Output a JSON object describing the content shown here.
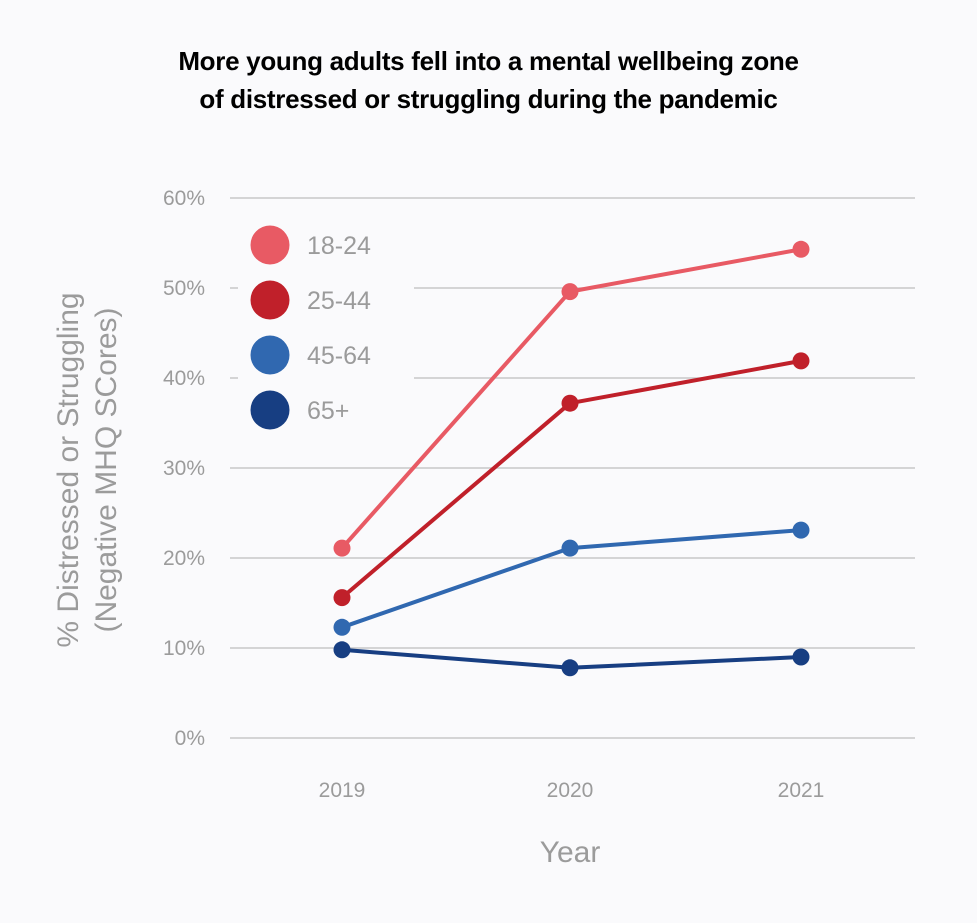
{
  "chart_data": {
    "type": "line",
    "title_lines": [
      "More young adults fell into a mental wellbeing zone",
      "of distressed or struggling during the pandemic"
    ],
    "xlabel": "Year",
    "ylabel_lines": [
      "% Distressed or Struggling",
      "(Negative MHQ SCores)"
    ],
    "x": [
      "2019",
      "2020",
      "2021"
    ],
    "ylim": [
      0,
      60
    ],
    "yticks": [
      0,
      10,
      20,
      30,
      40,
      50,
      60
    ],
    "ytick_labels": [
      "0%",
      "10%",
      "20%",
      "30%",
      "40%",
      "50%",
      "60%"
    ],
    "grid": true,
    "legend_position": "top-left",
    "series": [
      {
        "name": "18-24",
        "color": "#e85a64",
        "values": [
          21.1,
          49.6,
          54.3
        ]
      },
      {
        "name": "25-44",
        "color": "#c0202a",
        "values": [
          15.6,
          37.2,
          41.9
        ]
      },
      {
        "name": "45-64",
        "color": "#3068b0",
        "values": [
          12.3,
          21.1,
          23.1
        ]
      },
      {
        "name": "65+",
        "color": "#173e82",
        "values": [
          9.8,
          7.8,
          9.0
        ]
      }
    ]
  }
}
